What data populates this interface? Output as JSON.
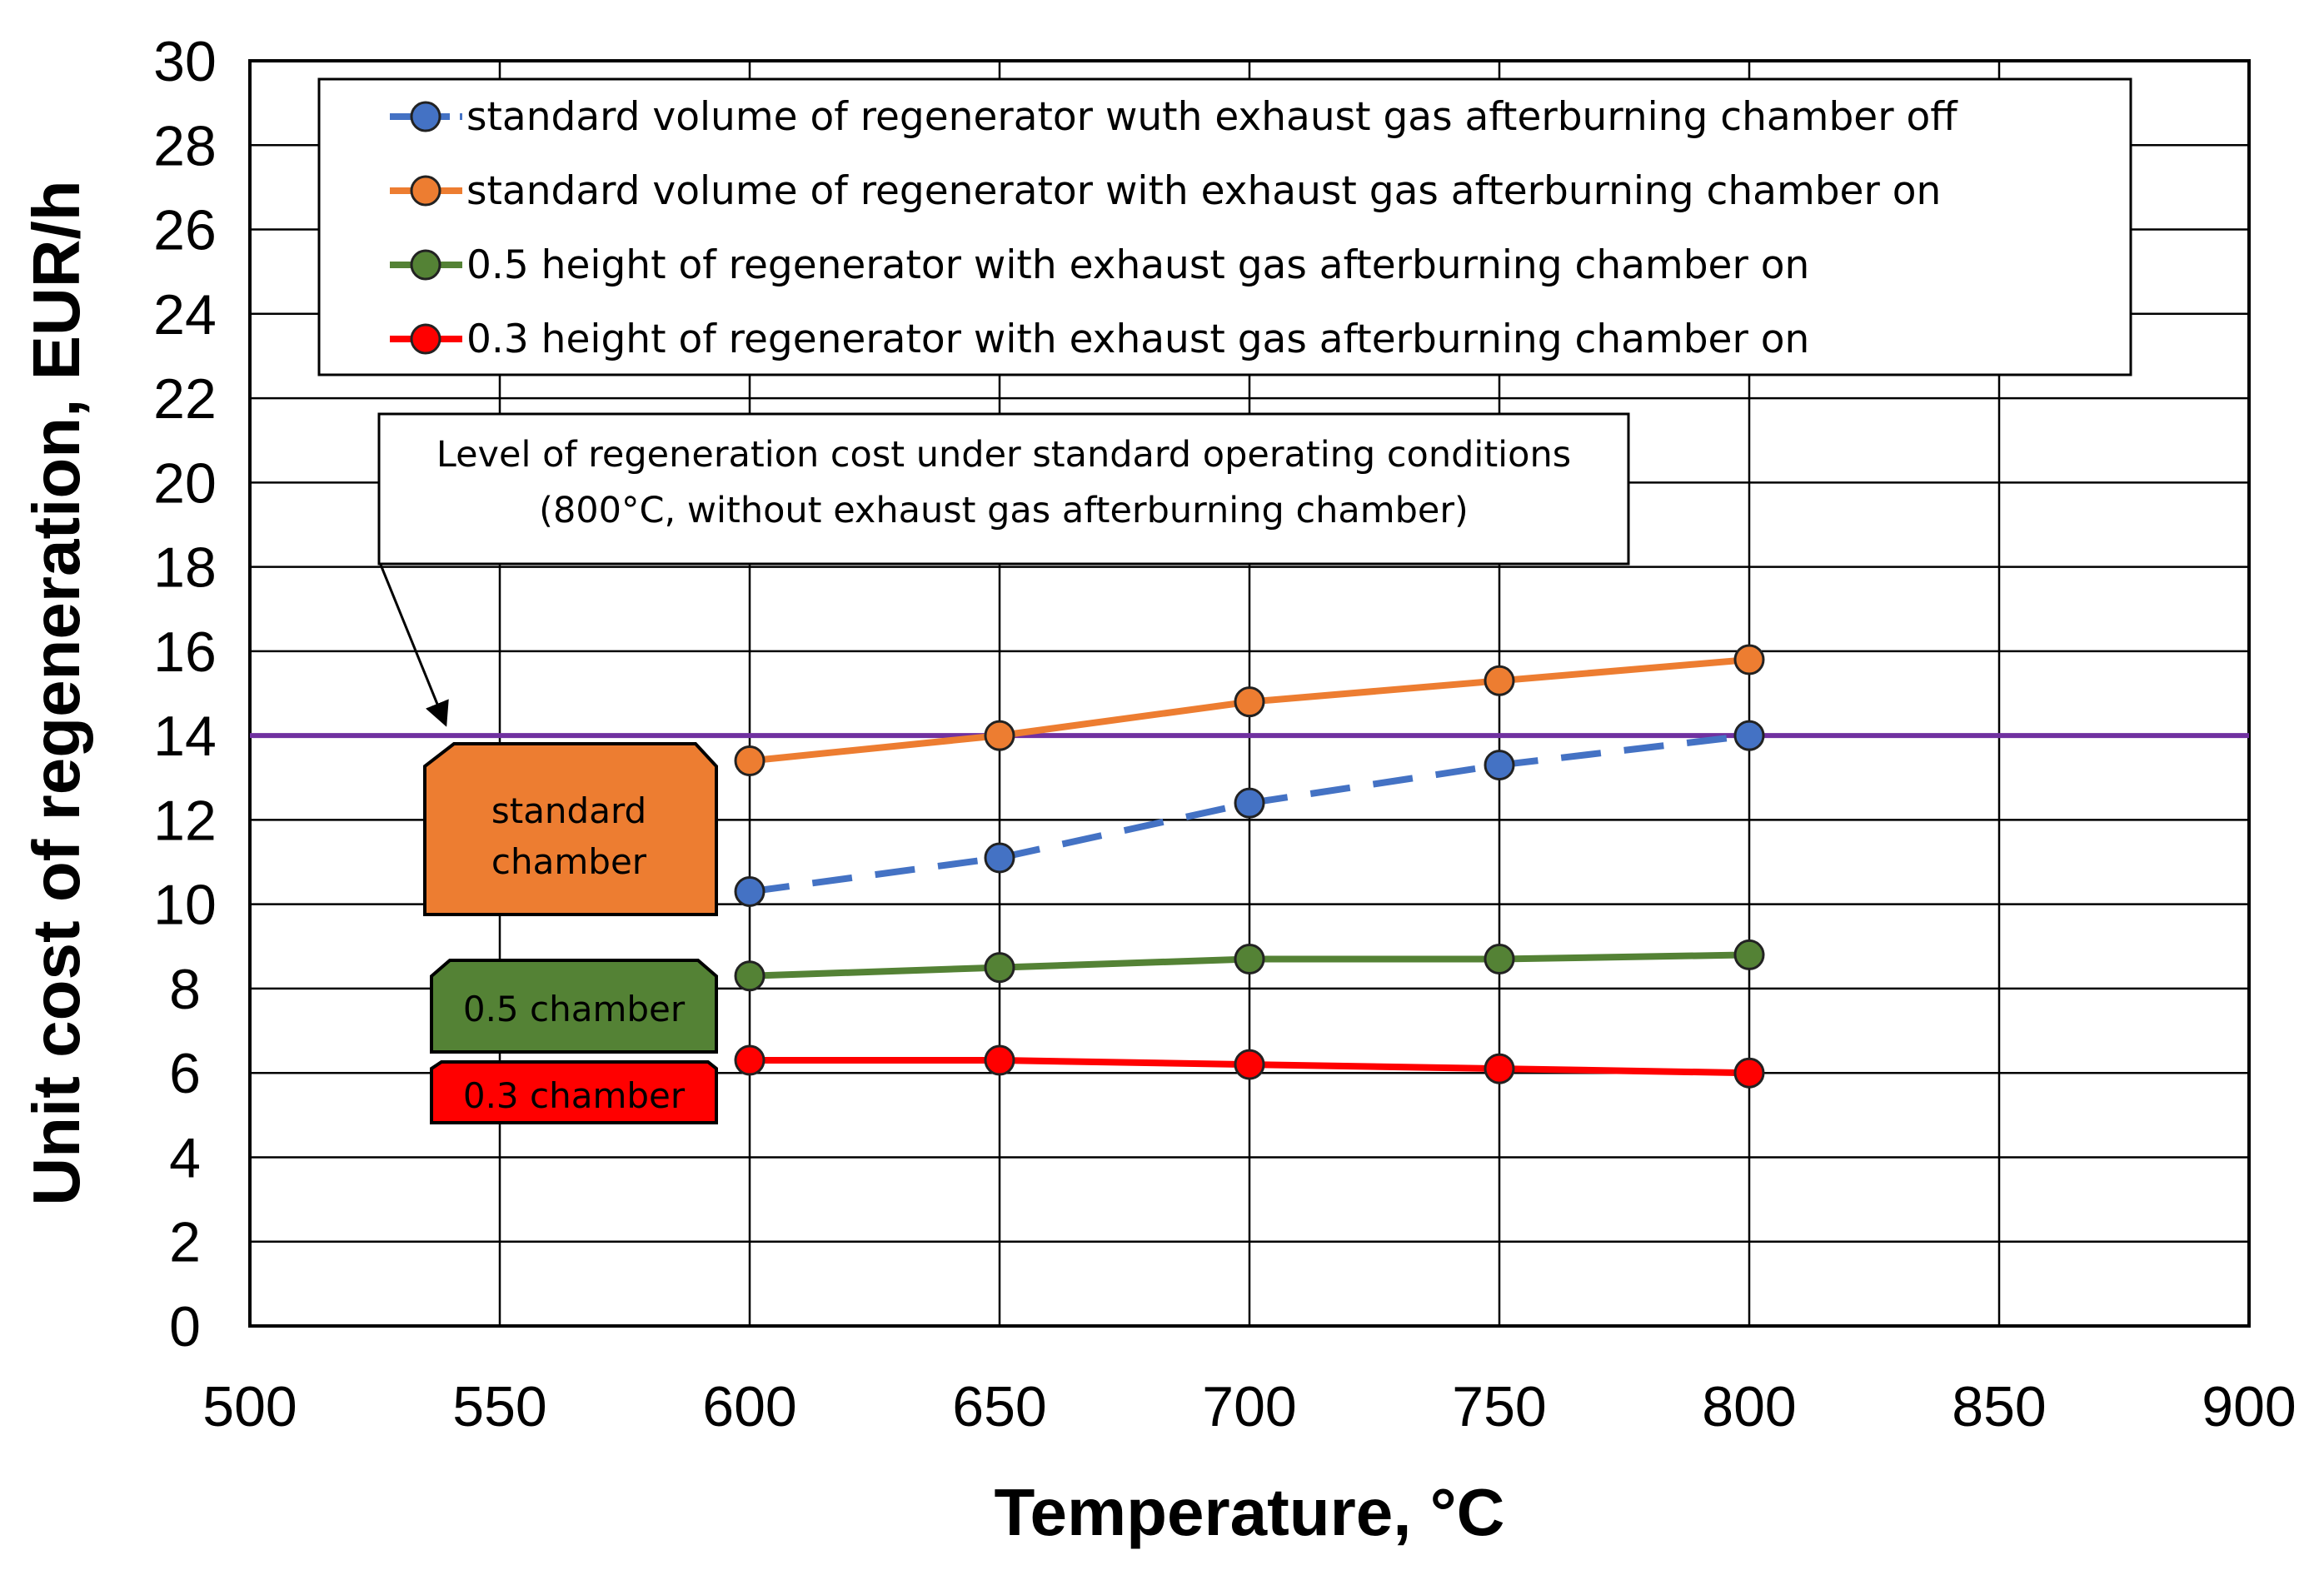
{
  "chart_data": {
    "type": "line",
    "xlabel": "Temperature, °C",
    "ylabel": "Unit cost of regeneration, EUR/h",
    "xlim": [
      500,
      900
    ],
    "ylim": [
      0,
      30
    ],
    "xticks": [
      500,
      550,
      600,
      650,
      700,
      750,
      800,
      850,
      900
    ],
    "yticks": [
      0,
      2,
      4,
      6,
      8,
      10,
      12,
      14,
      16,
      18,
      20,
      22,
      24,
      26,
      28,
      30
    ],
    "grid": true,
    "legend_position": "top",
    "series": [
      {
        "name": "standard volume of regenerator wuth exhaust gas afterburning chamber off",
        "color": "#4472c4",
        "dashed": true,
        "x": [
          600,
          650,
          700,
          750,
          800
        ],
        "values": [
          10.3,
          11.1,
          12.4,
          13.3,
          14.0
        ]
      },
      {
        "name": "standard volume of regenerator with exhaust gas afterburning chamber on",
        "color": "#ed7d31",
        "dashed": false,
        "x": [
          600,
          650,
          700,
          750,
          800
        ],
        "values": [
          13.4,
          14.0,
          14.8,
          15.3,
          15.8
        ]
      },
      {
        "name": "0.5 height of regenerator with exhaust gas afterburning chamber on",
        "color": "#548235",
        "dashed": false,
        "x": [
          600,
          650,
          700,
          750,
          800
        ],
        "values": [
          8.3,
          8.5,
          8.7,
          8.7,
          8.8
        ]
      },
      {
        "name": "0.3 height of regenerator with exhaust gas afterburning chamber on",
        "color": "#ff0000",
        "dashed": false,
        "x": [
          600,
          650,
          700,
          750,
          800
        ],
        "values": [
          6.3,
          6.3,
          6.2,
          6.1,
          6.0
        ]
      }
    ],
    "reference_line": {
      "value": 14.0,
      "color": "#7030a0",
      "annotation_line1": "Level of regeneration cost under standard operating conditions",
      "annotation_line2": "(800°C, without exhaust gas afterburning chamber)"
    },
    "group_labels": [
      {
        "line1": "standard",
        "line2": "chamber",
        "color": "#ed7d31"
      },
      {
        "line1": "0.5 chamber",
        "line2": "",
        "color": "#548235"
      },
      {
        "line1": "0.3 chamber",
        "line2": "",
        "color": "#ff0000"
      }
    ]
  }
}
